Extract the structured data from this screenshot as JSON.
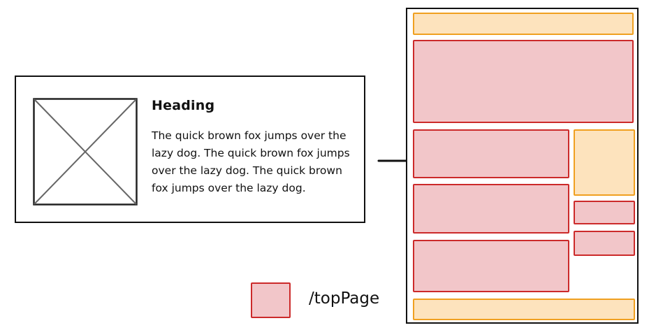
{
  "card": {
    "heading": "Heading",
    "body": "The quick brown fox jumps over the lazy dog. The quick brown fox jumps over the lazy dog. The quick brown fox jumps over the lazy dog."
  },
  "legend": {
    "label": "/topPage",
    "color": "#f2c6c9",
    "border_color": "#cc2a2a"
  },
  "colors": {
    "pink_fill": "#f2c6c9",
    "pink_border": "#cc2a2a",
    "orange_fill": "#fde3bd",
    "orange_border": "#f0a020"
  }
}
